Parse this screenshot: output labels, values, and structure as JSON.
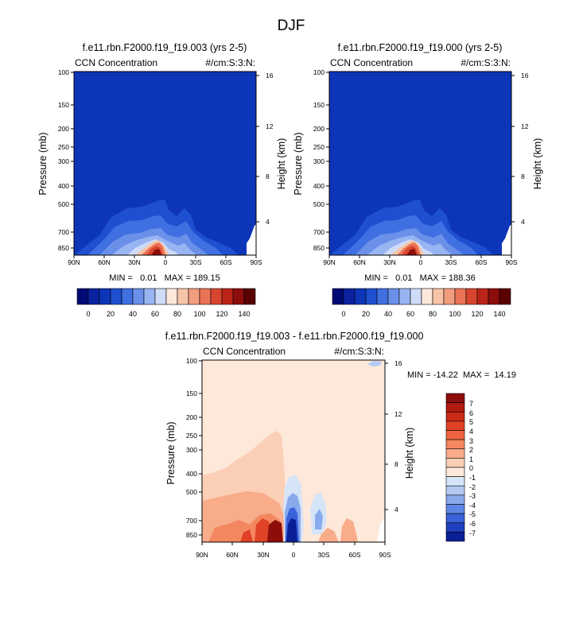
{
  "figure": {
    "title": "DJF"
  },
  "chart_data": [
    {
      "type": "heatmap",
      "title": "f.e11.rbn.F2000.f19_f19.003 (yrs 2-5)",
      "left_label": "CCN Concentration",
      "right_label": "#/cm:S:3:N:",
      "xlabel": "",
      "ylabel": "Pressure (mb)",
      "y2label": "Height (km)",
      "x_ticks": [
        "90N",
        "60N",
        "30N",
        "0",
        "30S",
        "60S",
        "90S"
      ],
      "y_ticks": [
        "100",
        "150",
        "200",
        "250",
        "300",
        "400",
        "500",
        "700",
        "850"
      ],
      "y2_ticks": [
        "16",
        "12",
        "8",
        "4"
      ],
      "xlim": [
        90,
        -90
      ],
      "ylim": [
        1000,
        100
      ],
      "y_scale": "log",
      "stats": "MIN =   0.01   MAX = 189.15",
      "min": 0.01,
      "max": 189.15,
      "colorbar_levels": [
        0,
        10,
        20,
        30,
        40,
        50,
        60,
        70,
        80,
        90,
        100,
        110,
        120,
        130,
        140
      ],
      "colorbar_labels": [
        "0",
        "20",
        "40",
        "60",
        "80",
        "100",
        "120",
        "140"
      ],
      "colorbar_colors": [
        "#000a75",
        "#0a22a0",
        "#0d35b8",
        "#1e4fd0",
        "#3f6fe0",
        "#6a90ea",
        "#98b4f2",
        "#cfdcf8",
        "#fde8dc",
        "#f8c4a8",
        "#f29e7e",
        "#ea7355",
        "#d8452f",
        "#bb2418",
        "#8c0d0a",
        "#5a0000"
      ]
    },
    {
      "type": "heatmap",
      "title": "f.e11.rbn.F2000.f19_f19.000 (yrs 2-5)",
      "left_label": "CCN Concentration",
      "right_label": "#/cm:S:3:N:",
      "xlabel": "",
      "ylabel": "Pressure (mb)",
      "y2label": "Height (km)",
      "x_ticks": [
        "90N",
        "60N",
        "30N",
        "0",
        "30S",
        "60S",
        "90S"
      ],
      "y_ticks": [
        "100",
        "150",
        "200",
        "250",
        "300",
        "400",
        "500",
        "700",
        "850"
      ],
      "y2_ticks": [
        "16",
        "12",
        "8",
        "4"
      ],
      "xlim": [
        90,
        -90
      ],
      "ylim": [
        1000,
        100
      ],
      "y_scale": "log",
      "stats": "MIN =   0.01   MAX = 188.36",
      "min": 0.01,
      "max": 188.36,
      "colorbar_levels": [
        0,
        10,
        20,
        30,
        40,
        50,
        60,
        70,
        80,
        90,
        100,
        110,
        120,
        130,
        140
      ],
      "colorbar_labels": [
        "0",
        "20",
        "40",
        "60",
        "80",
        "100",
        "120",
        "140"
      ],
      "colorbar_colors": [
        "#000a75",
        "#0a22a0",
        "#0d35b8",
        "#1e4fd0",
        "#3f6fe0",
        "#6a90ea",
        "#98b4f2",
        "#cfdcf8",
        "#fde8dc",
        "#f8c4a8",
        "#f29e7e",
        "#ea7355",
        "#d8452f",
        "#bb2418",
        "#8c0d0a",
        "#5a0000"
      ]
    },
    {
      "type": "heatmap",
      "title": "f.e11.rbn.F2000.f19_f19.003 - f.e11.rbn.F2000.f19_f19.000",
      "left_label": "CCN Concentration",
      "right_label": "#/cm:S:3:N:",
      "xlabel": "",
      "ylabel": "Pressure (mb)",
      "y2label": "Height (km)",
      "x_ticks": [
        "90N",
        "60N",
        "30N",
        "0",
        "30S",
        "60S",
        "90S"
      ],
      "y_ticks": [
        "100",
        "150",
        "200",
        "250",
        "300",
        "400",
        "500",
        "700",
        "850"
      ],
      "y2_ticks": [
        "16",
        "12",
        "8",
        "4"
      ],
      "xlim": [
        90,
        -90
      ],
      "ylim": [
        1000,
        100
      ],
      "y_scale": "log",
      "stats": "MIN = -14.22  MAX =  14.19",
      "min": -14.22,
      "max": 14.19,
      "colorbar_labels": [
        "7",
        "6",
        "5",
        "4",
        "3",
        "2",
        "1",
        "0",
        "-1",
        "-2",
        "-3",
        "-4",
        "-5",
        "-6",
        "-7"
      ],
      "colorbar_colors": [
        "#8c0d0a",
        "#b01a10",
        "#cc2a18",
        "#e04226",
        "#ee6440",
        "#f4875f",
        "#f8ac8a",
        "#fbcfb6",
        "#fde8da",
        "#d6e4f8",
        "#b4caf4",
        "#8aaaee",
        "#5f86e4",
        "#3a62d8",
        "#1e40c0",
        "#0a1e96"
      ]
    }
  ]
}
